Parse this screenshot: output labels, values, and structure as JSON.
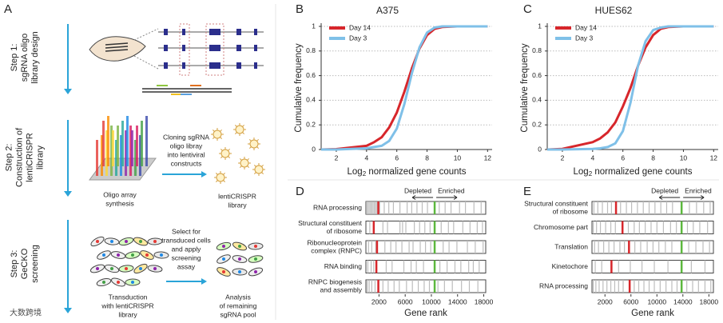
{
  "panel_labels": [
    "A",
    "B",
    "C",
    "D",
    "E"
  ],
  "panel_a": {
    "steps": [
      [
        "Step 1:",
        "sgRNA oligo",
        "library design"
      ],
      [
        "Step 2:",
        "Construction of",
        "lentiCRISPR",
        "library"
      ],
      [
        "Step 3:",
        "GeCKO",
        "screening"
      ]
    ],
    "annotations": [
      [
        "Oligo array",
        "synthesis"
      ],
      [
        "Cloning sgRNA",
        "oligo libray",
        "into lentiviral",
        "constructs"
      ],
      [
        "lentiCRISPR",
        "library"
      ],
      [
        "Select for",
        "transduced cells",
        "and apply",
        "screening",
        "assay"
      ],
      [
        "Transduction",
        "with lentiCRISPR",
        "library"
      ],
      [
        "Analysis",
        "of remaining",
        "sgRNA pool"
      ]
    ]
  },
  "watermark": "大数跨境",
  "chart_data": [
    {
      "type": "line",
      "title": "A375",
      "ylabel": "Cumulative frequency",
      "xlabel": [
        "Log",
        "2",
        " normalized gene counts"
      ],
      "x": [
        1,
        2,
        4,
        4.5,
        5,
        5.5,
        6,
        6.5,
        7,
        7.5,
        8,
        8.5,
        9,
        10,
        12
      ],
      "series": [
        {
          "name": "Day 14",
          "color": "#d7262b",
          "values": [
            0,
            0.003,
            0.03,
            0.06,
            0.1,
            0.18,
            0.3,
            0.47,
            0.66,
            0.82,
            0.93,
            0.98,
            0.995,
            1,
            1
          ]
        },
        {
          "name": "Day 3",
          "color": "#7fc0e8",
          "values": [
            0,
            0,
            0.01,
            0.02,
            0.03,
            0.07,
            0.17,
            0.37,
            0.62,
            0.83,
            0.95,
            0.99,
            1,
            1,
            1
          ]
        }
      ],
      "xlim": [
        1,
        12.3
      ],
      "xticks": [
        2,
        4,
        6,
        8,
        10,
        12
      ],
      "ylim": [
        0,
        1
      ],
      "yticks": [
        0,
        0.2,
        0.4,
        0.6,
        0.8,
        1
      ],
      "grid": true,
      "legend": "top-left"
    },
    {
      "type": "line",
      "title": "HUES62",
      "ylabel": "Cumulative frequency",
      "xlabel": [
        "Log",
        "2",
        " normalized gene counts"
      ],
      "x": [
        1,
        2,
        4,
        4.5,
        5,
        5.5,
        6,
        6.5,
        7,
        7.5,
        8,
        8.5,
        9,
        10,
        12
      ],
      "series": [
        {
          "name": "Day 14",
          "color": "#d7262b",
          "values": [
            0,
            0.005,
            0.06,
            0.09,
            0.14,
            0.22,
            0.35,
            0.5,
            0.68,
            0.83,
            0.93,
            0.98,
            0.995,
            1,
            1
          ]
        },
        {
          "name": "Day 3",
          "color": "#7fc0e8",
          "values": [
            0,
            0,
            0.005,
            0.01,
            0.02,
            0.05,
            0.15,
            0.38,
            0.68,
            0.88,
            0.97,
            0.99,
            1,
            1,
            1
          ]
        }
      ],
      "xlim": [
        1,
        12.3
      ],
      "xticks": [
        2,
        4,
        6,
        8,
        10,
        12
      ],
      "ylim": [
        0,
        1
      ],
      "yticks": [
        0,
        0.2,
        0.4,
        0.6,
        0.8,
        1
      ],
      "grid": true,
      "legend": "top-left"
    },
    {
      "type": "barcode",
      "xlabel": "Gene rank",
      "depleted": "Depleted",
      "enriched": "Enriched",
      "xlim": [
        0,
        18300
      ],
      "xticks": [
        2000,
        6000,
        10000,
        14000,
        18000
      ],
      "reference": 10500,
      "rows": [
        {
          "label": [
            "RNA processing"
          ],
          "red": 1900,
          "genes": [
            100,
            300,
            500,
            700,
            900,
            1100,
            1300,
            1500,
            1700,
            2100,
            2800,
            3500,
            4200,
            5200,
            6300,
            7000,
            7800,
            8600,
            9400,
            11200,
            12100,
            13000,
            14300,
            15200,
            16500,
            17600
          ]
        },
        {
          "label": [
            "Structural constituent",
            "of ribosome"
          ],
          "red": 1200,
          "genes": [
            600,
            2600,
            3300,
            5200,
            5600,
            6100,
            7400,
            8200,
            9000,
            9800,
            11500,
            12600,
            13400,
            14800,
            15900,
            17000,
            17800
          ]
        },
        {
          "label": [
            "Ribonucleoprotein",
            "complex (RNPC)"
          ],
          "red": 1700,
          "genes": [
            400,
            900,
            1500,
            2900,
            3800,
            4600,
            5500,
            6600,
            7200,
            8300,
            9100,
            9900,
            11800,
            12700,
            13900,
            15500,
            16700,
            17900
          ]
        },
        {
          "label": [
            "RNA binding"
          ],
          "red": 1600,
          "genes": [
            300,
            800,
            1200,
            3100,
            4000,
            5800,
            6900,
            7700,
            8800,
            11300,
            12400,
            13600,
            14500,
            15700,
            16400,
            17300
          ]
        },
        {
          "label": [
            "RNPC biogenesis",
            "and assembly"
          ],
          "red": 1900,
          "genes": [
            200,
            500,
            900,
            1400,
            2600,
            3400,
            4300,
            5100,
            6200,
            7100,
            8000,
            8900,
            9700,
            11000,
            12000,
            13200,
            14600,
            15800,
            17100
          ]
        }
      ]
    },
    {
      "type": "barcode",
      "xlabel": "Gene rank",
      "depleted": "Depleted",
      "enriched": "Enriched",
      "xlim": [
        0,
        18700
      ],
      "xticks": [
        2000,
        6000,
        10000,
        14000,
        18000
      ],
      "reference": 13800,
      "rows": [
        {
          "label": [
            "Structural constituent",
            "of ribosome"
          ],
          "red": 3700,
          "genes": [
            300,
            900,
            1600,
            2400,
            3000,
            4400,
            5300,
            6100,
            7000,
            7900,
            8800,
            9700,
            10600,
            11500,
            12400,
            15000,
            16100,
            17200,
            18200
          ]
        },
        {
          "label": [
            "Chromosome part"
          ],
          "red": 4700,
          "genes": [
            200,
            700,
            1300,
            2100,
            2900,
            3600,
            5600,
            6500,
            7300,
            8200,
            9100,
            10000,
            11000,
            12100,
            13000,
            14700,
            15600,
            16600,
            17800
          ]
        },
        {
          "label": [
            "Translation"
          ],
          "red": 5700,
          "genes": [
            400,
            1000,
            1800,
            2600,
            3400,
            4300,
            5000,
            6600,
            7500,
            8500,
            9400,
            10300,
            11300,
            12300,
            14900,
            16000,
            17100,
            18100
          ]
        },
        {
          "label": [
            "Kinetochore"
          ],
          "red": 3000,
          "genes": [
            500,
            1500,
            4100,
            5900,
            7700,
            9600,
            11700,
            15300,
            17400
          ]
        },
        {
          "label": [
            "RNA processing"
          ],
          "red": 5800,
          "genes": [
            200,
            600,
            1100,
            1700,
            2300,
            2900,
            3500,
            4100,
            4800,
            6500,
            7200,
            8000,
            8800,
            9600,
            10500,
            11400,
            12300,
            13100,
            14600,
            15500,
            16400,
            17400,
            18300
          ]
        }
      ]
    }
  ]
}
